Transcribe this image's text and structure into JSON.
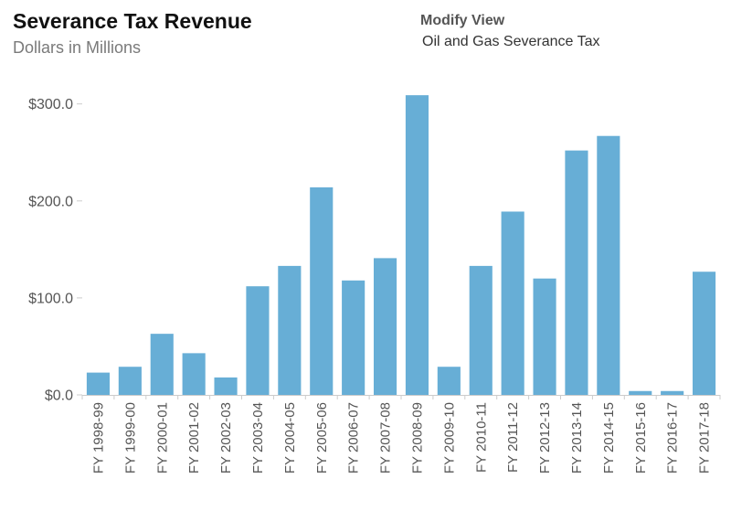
{
  "header": {
    "title": "Severance Tax Revenue",
    "subtitle": "Dollars in Millions",
    "modify_label": "Modify View",
    "filter_value": "Oil and Gas Severance Tax"
  },
  "colors": {
    "bar": "#67aed6",
    "axis": "#cccccc",
    "tick_text": "#555555"
  },
  "chart_data": {
    "type": "bar",
    "title": "Severance Tax Revenue",
    "subtitle": "Dollars in Millions",
    "xlabel": "",
    "ylabel": "",
    "ylim": [
      0,
      300
    ],
    "yticks": [
      0,
      100,
      200,
      300
    ],
    "ytick_labels": [
      "$0.0",
      "$100.0",
      "$200.0",
      "$300.0"
    ],
    "grid": false,
    "legend": "none",
    "categories": [
      "FY 1998-99",
      "FY 1999-00",
      "FY 2000-01",
      "FY 2001-02",
      "FY 2002-03",
      "FY 2003-04",
      "FY 2004-05",
      "FY 2005-06",
      "FY 2006-07",
      "FY 2007-08",
      "FY 2008-09",
      "FY 2009-10",
      "FY 2010-11",
      "FY 2011-12",
      "FY 2012-13",
      "FY 2013-14",
      "FY 2014-15",
      "FY 2015-16",
      "FY 2016-17",
      "FY 2017-18"
    ],
    "values": [
      23,
      29,
      63,
      43,
      18,
      112,
      133,
      214,
      118,
      141,
      309,
      29,
      133,
      189,
      120,
      252,
      267,
      4,
      4,
      127
    ]
  }
}
